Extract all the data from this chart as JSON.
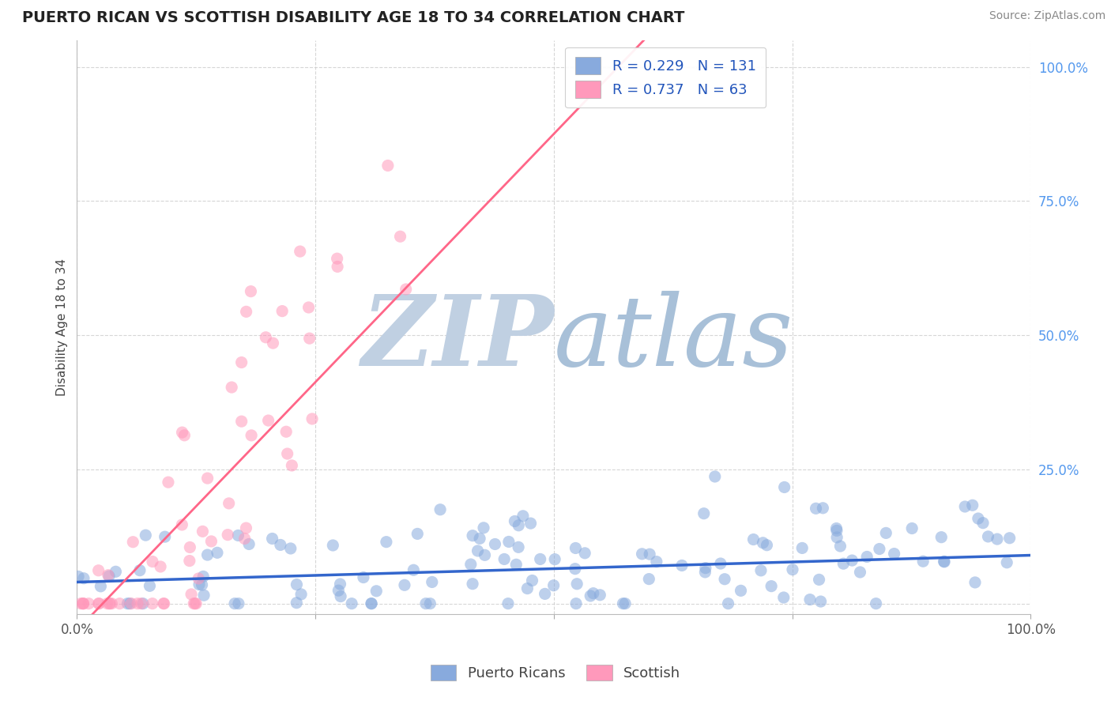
{
  "title": "PUERTO RICAN VS SCOTTISH DISABILITY AGE 18 TO 34 CORRELATION CHART",
  "source_text": "Source: ZipAtlas.com",
  "ylabel": "Disability Age 18 to 34",
  "watermark": "ZIPatlas",
  "legend_labels": [
    "Puerto Ricans",
    "Scottish"
  ],
  "blue_R": 0.229,
  "blue_N": 131,
  "pink_R": 0.737,
  "pink_N": 63,
  "blue_color": "#88AADD",
  "pink_color": "#FF99BB",
  "blue_line_color": "#3366CC",
  "pink_line_color": "#FF6688",
  "watermark_zip_color": "#C5D5E8",
  "watermark_atlas_color": "#A0BDD8",
  "background_color": "#FFFFFF",
  "xlim": [
    0.0,
    1.0
  ],
  "ylim": [
    -0.02,
    1.05
  ],
  "x_ticks": [
    0.0,
    0.25,
    0.5,
    0.75,
    1.0
  ],
  "x_tick_labels": [
    "0.0%",
    "",
    "",
    "",
    "100.0%"
  ],
  "y_ticks_right": [
    0.0,
    0.25,
    0.5,
    0.75,
    1.0
  ],
  "y_tick_labels_right": [
    "",
    "25.0%",
    "50.0%",
    "75.0%",
    "100.0%"
  ],
  "grid_color": "#CCCCCC",
  "title_fontsize": 14,
  "source_fontsize": 10
}
